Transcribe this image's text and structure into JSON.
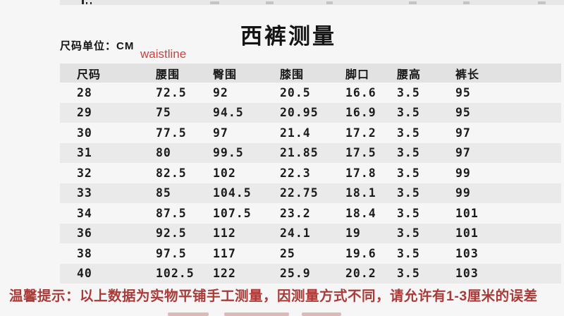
{
  "page": {
    "title": "西裤测量",
    "unit_label": "尺码单位：CM",
    "waistline_annotation": "waistline",
    "notice": "温馨提示：以上数据为实物平铺手工测量，因测量方式不同，请允许有1-3厘米的误差"
  },
  "table": {
    "headers": [
      "尺码",
      "腰围",
      "臀围",
      "膝围",
      "脚口",
      "腰高",
      "裤长"
    ],
    "rows": [
      [
        "28",
        "72.5",
        "92",
        "20.5",
        "16.6",
        "3.5",
        "95"
      ],
      [
        "29",
        "75",
        "94.5",
        "20.95",
        "16.9",
        "3.5",
        "95"
      ],
      [
        "30",
        "77.5",
        "97",
        "21.4",
        "17.2",
        "3.5",
        "97"
      ],
      [
        "31",
        "80",
        "99.5",
        "21.85",
        "17.5",
        "3.5",
        "97"
      ],
      [
        "32",
        "82.5",
        "102",
        "22.3",
        "17.8",
        "3.5",
        "99"
      ],
      [
        "33",
        "85",
        "104.5",
        "22.75",
        "18.1",
        "3.5",
        "99"
      ],
      [
        "34",
        "87.5",
        "107.5",
        "23.2",
        "18.4",
        "3.5",
        "101"
      ],
      [
        "36",
        "92.5",
        "112",
        "24.1",
        "19",
        "3.5",
        "101"
      ],
      [
        "38",
        "97.5",
        "117",
        "25",
        "19.6",
        "3.5",
        "103"
      ],
      [
        "40",
        "102.5",
        "122",
        "25.9",
        "20.2",
        "3.5",
        "103"
      ]
    ]
  },
  "colors": {
    "annotation_red": "#c9403f",
    "notice_red": "#a93a38",
    "header_bg": "#e2e2e2",
    "stripe_bg": "#eaeaea",
    "page_bg": "#f6f6f6",
    "text": "#141414"
  }
}
